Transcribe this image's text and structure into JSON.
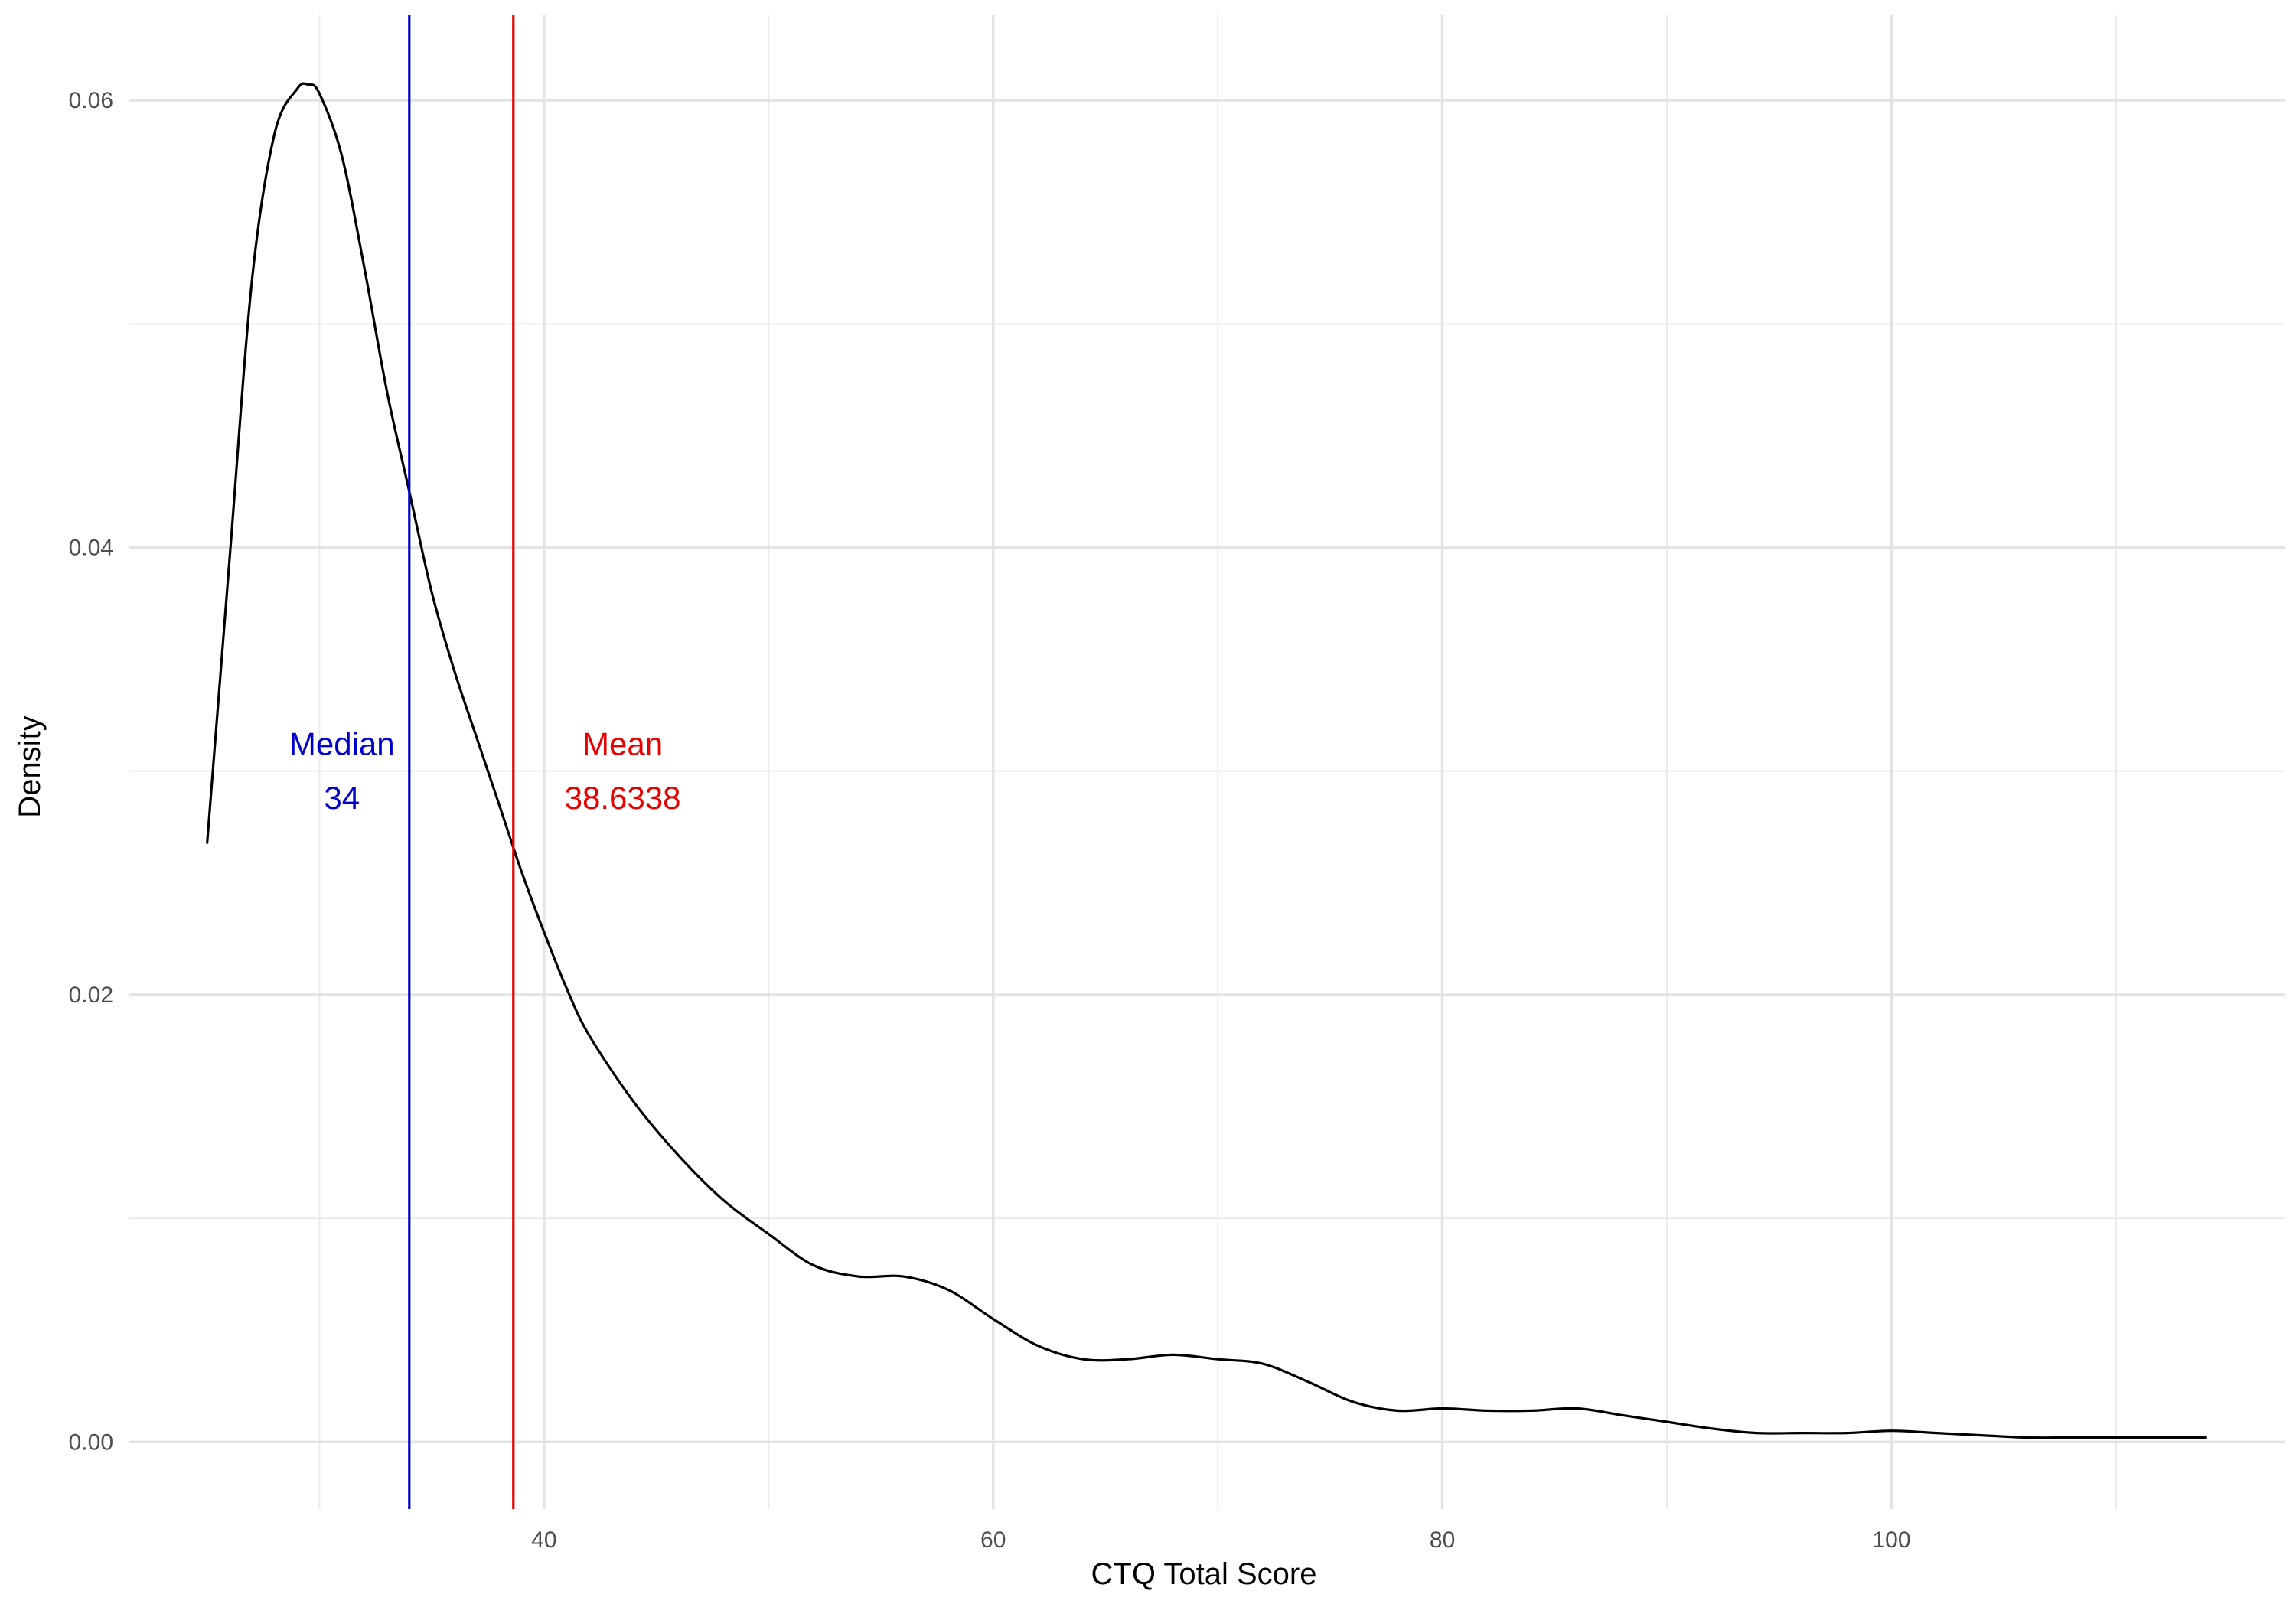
{
  "chart_data": {
    "type": "line",
    "title": "",
    "xlabel": "CTQ Total Score",
    "ylabel": "Density",
    "xlim": [
      21.5,
      117.5
    ],
    "ylim": [
      -0.003,
      0.0638
    ],
    "x_major_ticks": [
      40,
      60,
      80,
      100
    ],
    "x_minor_ticks": [
      30,
      50,
      70,
      90,
      110
    ],
    "y_major_ticks": [
      0.0,
      0.02,
      0.04,
      0.06
    ],
    "y_minor_ticks": [
      0.01,
      0.03,
      0.05
    ],
    "x_tick_labels": [
      "40",
      "60",
      "80",
      "100"
    ],
    "y_tick_labels": [
      "0.00",
      "0.02",
      "0.04",
      "0.06"
    ],
    "grid": true,
    "series": [
      {
        "name": "density",
        "color": "#000000",
        "x": [
          25,
          26,
          27,
          28,
          29,
          29.5,
          30,
          31,
          32,
          33,
          34,
          35,
          36,
          37,
          38,
          39,
          40,
          41,
          42,
          44,
          46,
          48,
          50,
          52,
          54,
          56,
          58,
          60,
          62,
          64,
          66,
          68,
          70,
          72,
          74,
          76,
          78,
          80,
          82,
          84,
          86,
          88,
          90,
          92,
          94,
          96,
          98,
          100,
          102,
          104,
          106,
          108,
          110,
          112,
          114
        ],
        "y": [
          0.0268,
          0.0395,
          0.052,
          0.0585,
          0.0605,
          0.0607,
          0.0603,
          0.0575,
          0.0525,
          0.047,
          0.0425,
          0.038,
          0.0345,
          0.0315,
          0.0285,
          0.0255,
          0.0228,
          0.0203,
          0.0182,
          0.0152,
          0.0128,
          0.0108,
          0.0093,
          0.0079,
          0.0074,
          0.0074,
          0.0068,
          0.0055,
          0.0043,
          0.0037,
          0.0037,
          0.0039,
          0.0037,
          0.0035,
          0.0027,
          0.0018,
          0.0014,
          0.0015,
          0.0014,
          0.0014,
          0.0015,
          0.0012,
          0.0009,
          0.0006,
          0.0004,
          0.0004,
          0.0004,
          0.0005,
          0.0004,
          0.0003,
          0.0002,
          0.0002,
          0.0002,
          0.0002,
          0.0002
        ]
      }
    ],
    "reference_lines": [
      {
        "name": "median",
        "label": "Median",
        "value_text": "34",
        "x": 34.0,
        "color": "#0000cc",
        "label_x": 31.0,
        "label_y1": 0.0312,
        "label_y2": 0.0288
      },
      {
        "name": "mean",
        "label": "Mean",
        "value_text": "38.6338",
        "x": 38.6338,
        "color": "#e60000",
        "label_x": 43.5,
        "label_y1": 0.0312,
        "label_y2": 0.0288
      }
    ]
  }
}
